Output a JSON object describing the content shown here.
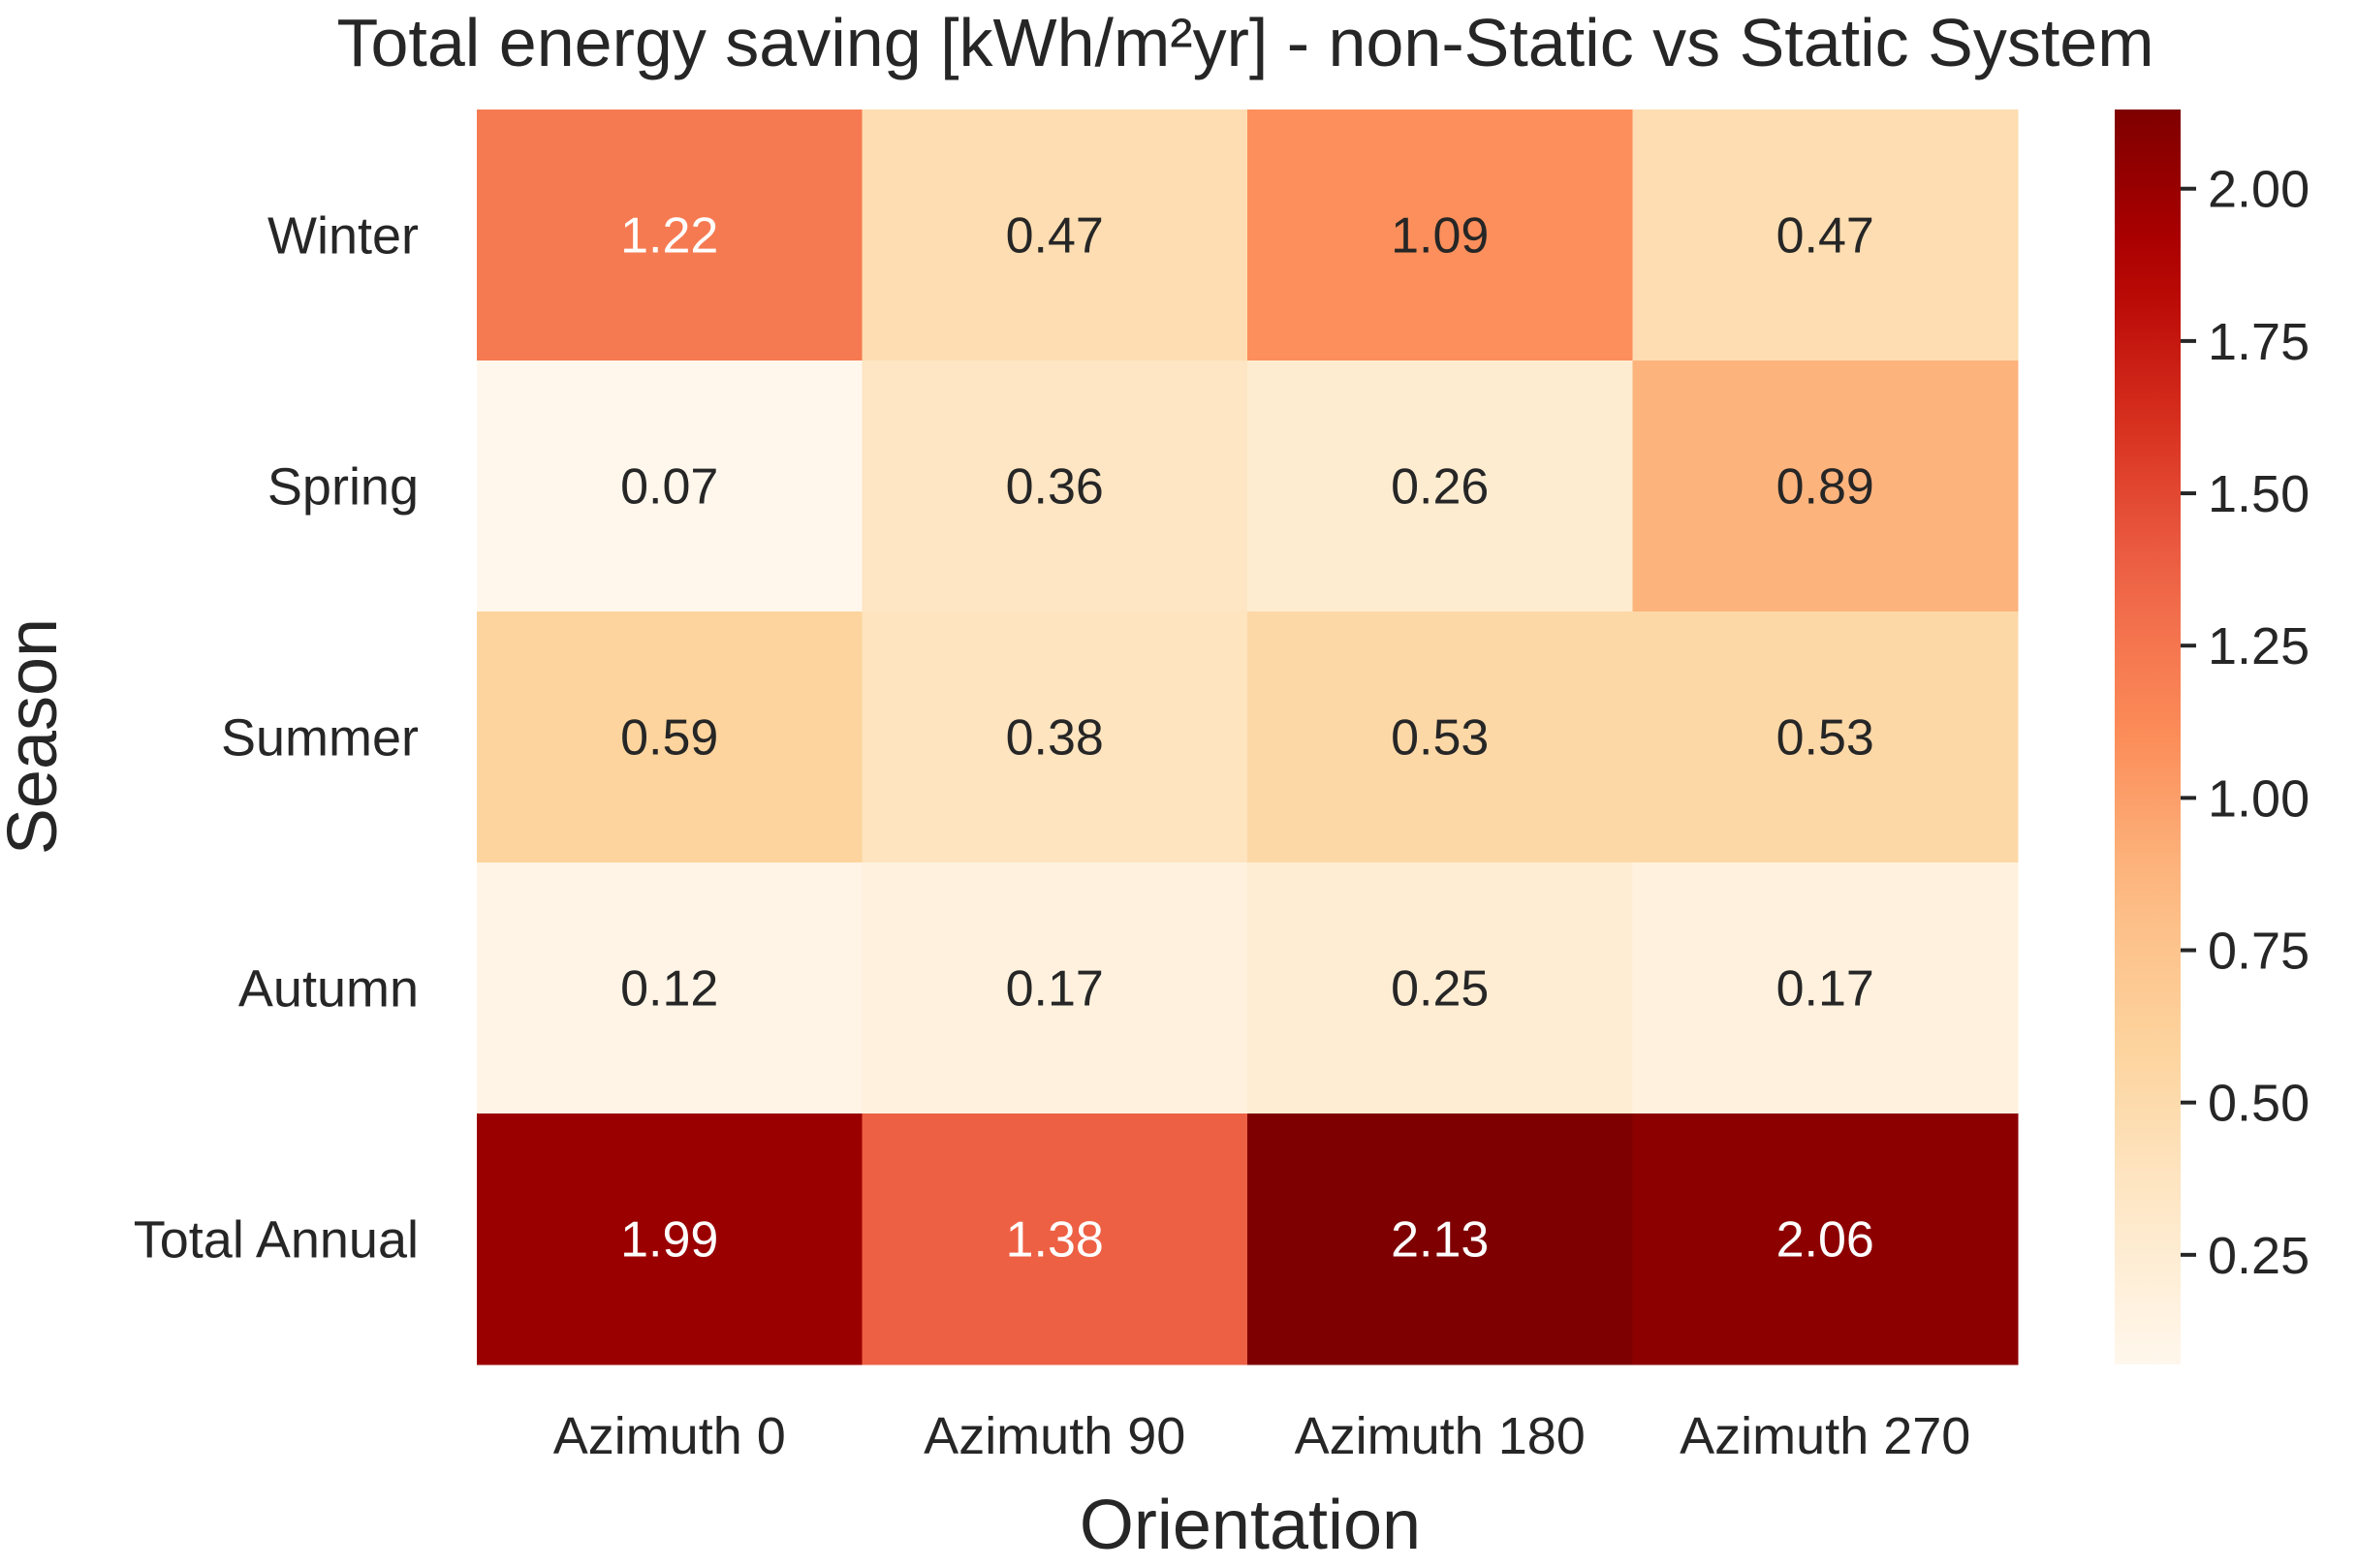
{
  "chart_data": {
    "type": "heatmap",
    "title": "Total energy saving [kWh/m²yr] - non-Static vs Static System",
    "xlabel": "Orientation",
    "ylabel": "Season",
    "x_categories": [
      "Azimuth 0",
      "Azimuth 90",
      "Azimuth 180",
      "Azimuth 270"
    ],
    "y_categories": [
      "Winter",
      "Spring",
      "Summer",
      "Autumn",
      "Total Annual"
    ],
    "values": [
      [
        1.22,
        0.47,
        1.09,
        0.47
      ],
      [
        0.07,
        0.36,
        0.26,
        0.89
      ],
      [
        0.59,
        0.38,
        0.53,
        0.53
      ],
      [
        0.12,
        0.17,
        0.25,
        0.17
      ],
      [
        1.99,
        1.38,
        2.13,
        2.06
      ]
    ],
    "value_labels": [
      [
        "1.22",
        "0.47",
        "1.09",
        "0.47"
      ],
      [
        "0.07",
        "0.36",
        "0.26",
        "0.89"
      ],
      [
        "0.59",
        "0.38",
        "0.53",
        "0.53"
      ],
      [
        "0.12",
        "0.17",
        "0.25",
        "0.17"
      ],
      [
        "1.99",
        "1.38",
        "2.13",
        "2.06"
      ]
    ],
    "colorbar": {
      "colormap": "OrRd",
      "vmin": 0.07,
      "vmax": 2.13,
      "ticks": [
        0.25,
        0.5,
        0.75,
        1.0,
        1.25,
        1.5,
        1.75,
        2.0
      ],
      "tick_labels": [
        "0.25",
        "0.50",
        "0.75",
        "1.00",
        "1.25",
        "1.50",
        "1.75",
        "2.00"
      ]
    },
    "dark_text_color": "#262626",
    "light_text_color": "#ffffff"
  }
}
